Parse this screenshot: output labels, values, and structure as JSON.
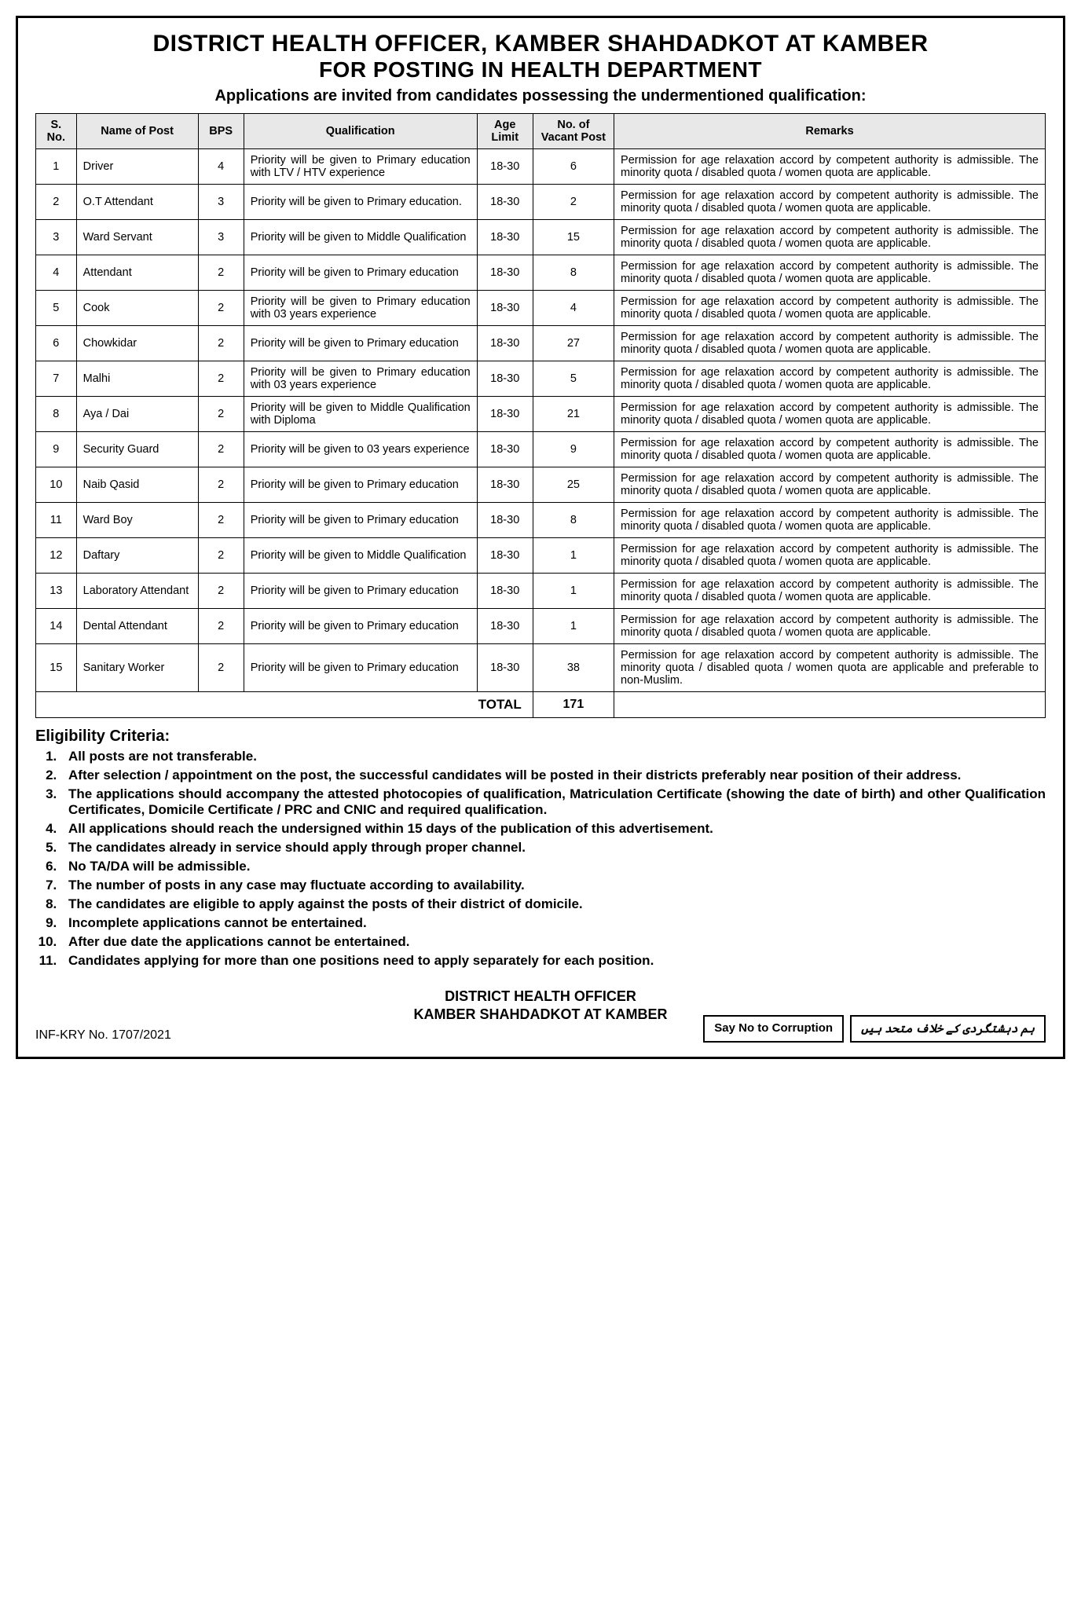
{
  "header": {
    "title1": "DISTRICT HEALTH OFFICER, KAMBER SHAHDADKOT AT KAMBER",
    "title2": "FOR POSTING IN HEALTH DEPARTMENT",
    "subtitle": "Applications are invited from candidates possessing the undermentioned qualification:"
  },
  "table": {
    "headers": {
      "sno": "S. No.",
      "post": "Name of Post",
      "bps": "BPS",
      "qual": "Qualification",
      "age": "Age Limit",
      "vacant": "No. of Vacant Post",
      "remarks": "Remarks"
    },
    "rows": [
      {
        "sno": "1",
        "post": "Driver",
        "bps": "4",
        "qual": "Priority will be given to Primary education with LTV / HTV experience",
        "age": "18-30",
        "vacant": "6",
        "remarks": "Permission for age relaxation accord by competent authority is admissible. The minority quota / disabled quota / women quota are applicable."
      },
      {
        "sno": "2",
        "post": "O.T Attendant",
        "bps": "3",
        "qual": "Priority will be given to Primary education.",
        "age": "18-30",
        "vacant": "2",
        "remarks": "Permission for age relaxation accord by competent authority is admissible. The minority quota / disabled quota / women quota are applicable."
      },
      {
        "sno": "3",
        "post": "Ward Servant",
        "bps": "3",
        "qual": "Priority will be given to Middle Qualification",
        "age": "18-30",
        "vacant": "15",
        "remarks": "Permission for age relaxation accord by competent authority is admissible. The minority quota / disabled quota / women quota are applicable."
      },
      {
        "sno": "4",
        "post": "Attendant",
        "bps": "2",
        "qual": "Priority will be given to Primary education",
        "age": "18-30",
        "vacant": "8",
        "remarks": "Permission for age relaxation accord by competent authority is admissible. The minority quota / disabled quota / women quota are applicable."
      },
      {
        "sno": "5",
        "post": "Cook",
        "bps": "2",
        "qual": "Priority will be given to Primary education with 03 years experience",
        "age": "18-30",
        "vacant": "4",
        "remarks": "Permission for age relaxation accord by competent authority is admissible. The minority quota / disabled quota / women quota are applicable."
      },
      {
        "sno": "6",
        "post": "Chowkidar",
        "bps": "2",
        "qual": "Priority will be given to Primary education",
        "age": "18-30",
        "vacant": "27",
        "remarks": "Permission for age relaxation accord by competent authority is admissible. The minority quota / disabled quota / women quota are applicable."
      },
      {
        "sno": "7",
        "post": "Malhi",
        "bps": "2",
        "qual": "Priority will be given to Primary education with 03 years experience",
        "age": "18-30",
        "vacant": "5",
        "remarks": "Permission for age relaxation accord by competent authority is admissible. The minority quota / disabled quota / women quota are applicable."
      },
      {
        "sno": "8",
        "post": "Aya / Dai",
        "bps": "2",
        "qual": "Priority will be given to Middle Qualification with Diploma",
        "age": "18-30",
        "vacant": "21",
        "remarks": "Permission for age relaxation accord by competent authority is admissible. The minority quota / disabled quota / women quota are applicable."
      },
      {
        "sno": "9",
        "post": "Security Guard",
        "bps": "2",
        "qual": "Priority will be given to 03 years experience",
        "age": "18-30",
        "vacant": "9",
        "remarks": "Permission for age relaxation accord by competent authority is admissible. The minority quota / disabled quota / women quota are applicable."
      },
      {
        "sno": "10",
        "post": "Naib Qasid",
        "bps": "2",
        "qual": "Priority will be given to Primary education",
        "age": "18-30",
        "vacant": "25",
        "remarks": "Permission for age relaxation accord by competent authority is admissible. The minority quota / disabled quota / women quota are applicable."
      },
      {
        "sno": "11",
        "post": "Ward Boy",
        "bps": "2",
        "qual": "Priority will be given to Primary education",
        "age": "18-30",
        "vacant": "8",
        "remarks": "Permission for age relaxation accord by competent authority is admissible. The minority quota / disabled quota / women quota are applicable."
      },
      {
        "sno": "12",
        "post": "Daftary",
        "bps": "2",
        "qual": "Priority will be given to Middle Qualification",
        "age": "18-30",
        "vacant": "1",
        "remarks": "Permission for age relaxation accord by competent authority is admissible. The minority quota / disabled quota / women quota are applicable."
      },
      {
        "sno": "13",
        "post": "Laboratory Attendant",
        "bps": "2",
        "qual": "Priority will be given to Primary education",
        "age": "18-30",
        "vacant": "1",
        "remarks": "Permission for age relaxation accord by competent authority is admissible. The minority quota / disabled quota / women quota are applicable."
      },
      {
        "sno": "14",
        "post": "Dental Attendant",
        "bps": "2",
        "qual": "Priority will be given to Primary education",
        "age": "18-30",
        "vacant": "1",
        "remarks": "Permission for age relaxation accord by competent authority is admissible. The minority quota / disabled quota / women quota are applicable."
      },
      {
        "sno": "15",
        "post": "Sanitary Worker",
        "bps": "2",
        "qual": "Priority will be given to Primary education",
        "age": "18-30",
        "vacant": "38",
        "remarks": "Permission for age relaxation accord by competent authority is admissible. The minority quota / disabled quota / women quota are applicable and preferable to non-Muslim."
      }
    ],
    "total_label": "TOTAL",
    "total_value": "171"
  },
  "eligibility": {
    "heading": "Eligibility Criteria:",
    "items": [
      "All posts are not transferable.",
      "After selection / appointment on the post, the successful candidates will be posted in their districts preferably near position of their address.",
      "The applications should accompany the attested photocopies of qualification, Matriculation Certificate (showing the date of birth) and other Qualification Certificates, Domicile Certificate / PRC and CNIC and required qualification.",
      "All applications should reach the undersigned within 15 days of the publication of this advertisement.",
      "The candidates already in service should apply through proper channel.",
      "No TA/DA will be admissible.",
      "The number of posts in any case may fluctuate according to availability.",
      "The candidates are eligible to apply against the posts of their district of domicile.",
      "Incomplete applications cannot be entertained.",
      "After due date the applications cannot be entertained.",
      "Candidates applying for more than one positions need to apply separately for each position."
    ]
  },
  "footer": {
    "officer_line1": "DISTRICT HEALTH OFFICER",
    "officer_line2": "KAMBER SHAHDADKOT AT KAMBER",
    "ref_no": "INF-KRY No. 1707/2021",
    "box1": "Say No to Corruption",
    "box2": "ہم دہشتگردی کے خلاف متحد ہیں"
  },
  "style": {
    "header_bg": "#e8e8e8",
    "border_color": "#000000",
    "background": "#ffffff",
    "text_color": "#000000"
  }
}
